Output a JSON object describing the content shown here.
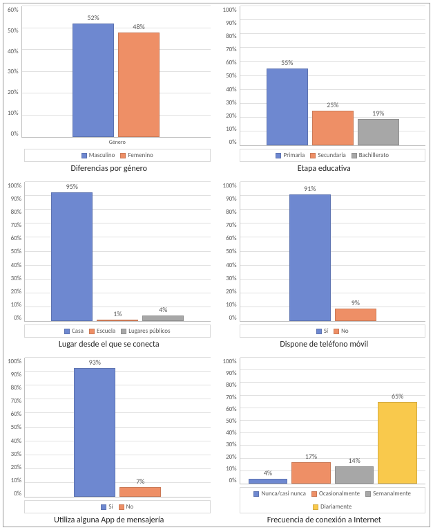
{
  "colors": {
    "blue": "#6e88d0",
    "orange": "#ee8f66",
    "gray": "#a7a7a7",
    "yellow": "#f9c94c",
    "grid": "#e0e0e0",
    "axis_text": "#595959"
  },
  "panels": [
    {
      "key": "gender",
      "type": "bar",
      "ylim": [
        0,
        60
      ],
      "ytick_step": 10,
      "xaxis_label": "Género",
      "categories": [
        "Masculino",
        "Femenino"
      ],
      "values": [
        52,
        48
      ],
      "bar_colors": [
        "#6e88d0",
        "#ee8f66"
      ],
      "legend": [
        {
          "label": "Masculino",
          "color": "#6e88d0"
        },
        {
          "label": "Femenino",
          "color": "#ee8f66"
        }
      ],
      "caption": "Diferencias por género"
    },
    {
      "key": "stage",
      "type": "bar",
      "ylim": [
        0,
        100
      ],
      "ytick_step": 10,
      "xaxis_label": "",
      "categories": [
        "Primaria",
        "Secundaria",
        "Bachillerato"
      ],
      "values": [
        55,
        25,
        19
      ],
      "bar_colors": [
        "#6e88d0",
        "#ee8f66",
        "#a7a7a7"
      ],
      "legend": [
        {
          "label": "Primaria",
          "color": "#6e88d0"
        },
        {
          "label": "Secundaria",
          "color": "#ee8f66"
        },
        {
          "label": "Bachillerato",
          "color": "#a7a7a7"
        }
      ],
      "caption": "Etapa educativa"
    },
    {
      "key": "place",
      "type": "bar",
      "ylim": [
        0,
        100
      ],
      "ytick_step": 10,
      "xaxis_label": "",
      "categories": [
        "Casa",
        "Escuela",
        "Lugares públicos"
      ],
      "values": [
        95,
        1,
        4
      ],
      "bar_colors": [
        "#6e88d0",
        "#ee8f66",
        "#a7a7a7"
      ],
      "legend": [
        {
          "label": "Casa",
          "color": "#6e88d0"
        },
        {
          "label": "Escuela",
          "color": "#ee8f66"
        },
        {
          "label": "Lugares públicos",
          "color": "#a7a7a7"
        }
      ],
      "caption": "Lugar desde el que se conecta"
    },
    {
      "key": "phone",
      "type": "bar",
      "ylim": [
        0,
        100
      ],
      "ytick_step": 10,
      "xaxis_label": "",
      "categories": [
        "Sí",
        "No"
      ],
      "values": [
        91,
        9
      ],
      "bar_colors": [
        "#6e88d0",
        "#ee8f66"
      ],
      "legend": [
        {
          "label": "Sí",
          "color": "#6e88d0"
        },
        {
          "label": "No",
          "color": "#ee8f66"
        }
      ],
      "caption": "Dispone de teléfono móvil"
    },
    {
      "key": "app",
      "type": "bar",
      "ylim": [
        0,
        100
      ],
      "ytick_step": 10,
      "xaxis_label": "",
      "categories": [
        "Sí",
        "No"
      ],
      "values": [
        93,
        7
      ],
      "bar_colors": [
        "#6e88d0",
        "#ee8f66"
      ],
      "legend": [
        {
          "label": "Sí",
          "color": "#6e88d0"
        },
        {
          "label": "No",
          "color": "#ee8f66"
        }
      ],
      "caption": "Utiliza alguna App de mensajería"
    },
    {
      "key": "freq",
      "type": "bar",
      "ylim": [
        0,
        100
      ],
      "ytick_step": 10,
      "xaxis_label": "",
      "categories": [
        "Nunca/casi nunca",
        "Ocasionalmente",
        "Semanalmente",
        "Diariamente"
      ],
      "values": [
        4,
        17,
        14,
        65
      ],
      "bar_colors": [
        "#6e88d0",
        "#ee8f66",
        "#a7a7a7",
        "#f9c94c"
      ],
      "legend": [
        {
          "label": "Nunca/casi nunca",
          "color": "#6e88d0"
        },
        {
          "label": "Ocasionalmente",
          "color": "#ee8f66"
        },
        {
          "label": "Semanalmente",
          "color": "#a7a7a7"
        },
        {
          "label": "Diariamente",
          "color": "#f9c94c"
        }
      ],
      "caption": "Frecuencia de conexión a Internet"
    }
  ]
}
